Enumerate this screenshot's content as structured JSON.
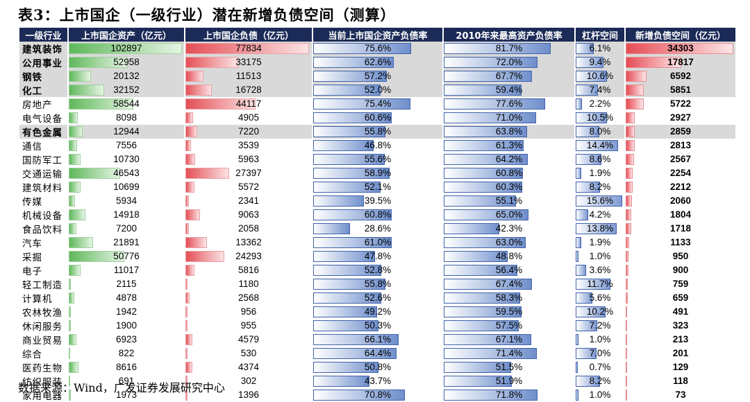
{
  "title": "表3：上市国企（一级行业）潜在新增负债空间（测算）",
  "source": "数据来源：Wind，广发证券发展研究中心",
  "columns": [
    "一级行业",
    "上市国企资产（亿元）",
    "上市国企负债（亿元）",
    "当前上市国企资产负债率",
    "2010年来最高资产负债率",
    "杠杆空间",
    "新增负债空间（亿元）"
  ],
  "colors": {
    "header": "#1b2a57",
    "asset": "#5fb85b",
    "debt": "#e44f56",
    "ratio": "#6f8fcc",
    "new_debt": "#e64c55"
  },
  "rows": [
    {
      "industry": "建筑装饰",
      "asset": 102897,
      "debt": 77834,
      "ratio": "75.6%",
      "max_ratio": "81.7%",
      "leverage": "6.1%",
      "new_debt": 34303
    },
    {
      "industry": "公用事业",
      "asset": 52958,
      "debt": 33175,
      "ratio": "62.6%",
      "max_ratio": "72.0%",
      "leverage": "9.4%",
      "new_debt": 17817
    },
    {
      "industry": "钢铁",
      "asset": 20132,
      "debt": 11513,
      "ratio": "57.2%",
      "max_ratio": "67.7%",
      "leverage": "10.6%",
      "new_debt": 6592
    },
    {
      "industry": "化工",
      "asset": 32152,
      "debt": 16728,
      "ratio": "52.0%",
      "max_ratio": "59.4%",
      "leverage": "7.4%",
      "new_debt": 5851
    },
    {
      "industry": "房地产",
      "asset": 58544,
      "debt": 44117,
      "ratio": "75.4%",
      "max_ratio": "77.6%",
      "leverage": "2.2%",
      "new_debt": 5722
    },
    {
      "industry": "电气设备",
      "asset": 8098,
      "debt": 4905,
      "ratio": "60.6%",
      "max_ratio": "71.0%",
      "leverage": "10.5%",
      "new_debt": 2927
    },
    {
      "industry": "有色金属",
      "asset": 12944,
      "debt": 7220,
      "ratio": "55.8%",
      "max_ratio": "63.8%",
      "leverage": "8.0%",
      "new_debt": 2859
    },
    {
      "industry": "通信",
      "asset": 7556,
      "debt": 3539,
      "ratio": "46.8%",
      "max_ratio": "61.3%",
      "leverage": "14.4%",
      "new_debt": 2813
    },
    {
      "industry": "国防军工",
      "asset": 10730,
      "debt": 5963,
      "ratio": "55.6%",
      "max_ratio": "64.2%",
      "leverage": "8.6%",
      "new_debt": 2567
    },
    {
      "industry": "交通运输",
      "asset": 46543,
      "debt": 27397,
      "ratio": "58.9%",
      "max_ratio": "60.8%",
      "leverage": "1.9%",
      "new_debt": 2254
    },
    {
      "industry": "建筑材料",
      "asset": 10699,
      "debt": 5572,
      "ratio": "52.1%",
      "max_ratio": "60.3%",
      "leverage": "8.2%",
      "new_debt": 2212
    },
    {
      "industry": "传媒",
      "asset": 5934,
      "debt": 2341,
      "ratio": "39.5%",
      "max_ratio": "55.1%",
      "leverage": "15.6%",
      "new_debt": 2060
    },
    {
      "industry": "机械设备",
      "asset": 14918,
      "debt": 9063,
      "ratio": "60.8%",
      "max_ratio": "65.0%",
      "leverage": "4.2%",
      "new_debt": 1804
    },
    {
      "industry": "食品饮料",
      "asset": 7200,
      "debt": 2058,
      "ratio": "28.6%",
      "max_ratio": "42.3%",
      "leverage": "13.8%",
      "new_debt": 1718
    },
    {
      "industry": "汽车",
      "asset": 21891,
      "debt": 13362,
      "ratio": "61.0%",
      "max_ratio": "63.0%",
      "leverage": "1.9%",
      "new_debt": 1133
    },
    {
      "industry": "采掘",
      "asset": 50776,
      "debt": 24293,
      "ratio": "47.8%",
      "max_ratio": "48.8%",
      "leverage": "1.0%",
      "new_debt": 950
    },
    {
      "industry": "电子",
      "asset": 11017,
      "debt": 5816,
      "ratio": "52.8%",
      "max_ratio": "56.4%",
      "leverage": "3.6%",
      "new_debt": 900
    },
    {
      "industry": "轻工制造",
      "asset": 2115,
      "debt": 1180,
      "ratio": "55.8%",
      "max_ratio": "67.4%",
      "leverage": "11.7%",
      "new_debt": 759
    },
    {
      "industry": "计算机",
      "asset": 4878,
      "debt": 2568,
      "ratio": "52.6%",
      "max_ratio": "58.3%",
      "leverage": "5.6%",
      "new_debt": 659
    },
    {
      "industry": "农林牧渔",
      "asset": 1942,
      "debt": 956,
      "ratio": "49.2%",
      "max_ratio": "59.5%",
      "leverage": "10.2%",
      "new_debt": 491
    },
    {
      "industry": "休闲服务",
      "asset": 1900,
      "debt": 955,
      "ratio": "50.3%",
      "max_ratio": "57.5%",
      "leverage": "7.2%",
      "new_debt": 323
    },
    {
      "industry": "商业贸易",
      "asset": 6923,
      "debt": 4579,
      "ratio": "66.1%",
      "max_ratio": "67.1%",
      "leverage": "1.0%",
      "new_debt": 213
    },
    {
      "industry": "综合",
      "asset": 822,
      "debt": 530,
      "ratio": "64.4%",
      "max_ratio": "71.4%",
      "leverage": "7.0%",
      "new_debt": 201
    },
    {
      "industry": "医药生物",
      "asset": 8616,
      "debt": 4374,
      "ratio": "50.8%",
      "max_ratio": "51.5%",
      "leverage": "0.7%",
      "new_debt": 129
    },
    {
      "industry": "纺织服装",
      "asset": 691,
      "debt": 302,
      "ratio": "43.7%",
      "max_ratio": "51.9%",
      "leverage": "8.2%",
      "new_debt": 118
    },
    {
      "industry": "家用电器",
      "asset": 1973,
      "debt": 1396,
      "ratio": "70.8%",
      "max_ratio": "71.8%",
      "leverage": "1.0%",
      "new_debt": 73
    }
  ],
  "highlighted_rows": [
    "建筑装饰",
    "公用事业",
    "钢铁",
    "化工",
    "有色金属"
  ]
}
